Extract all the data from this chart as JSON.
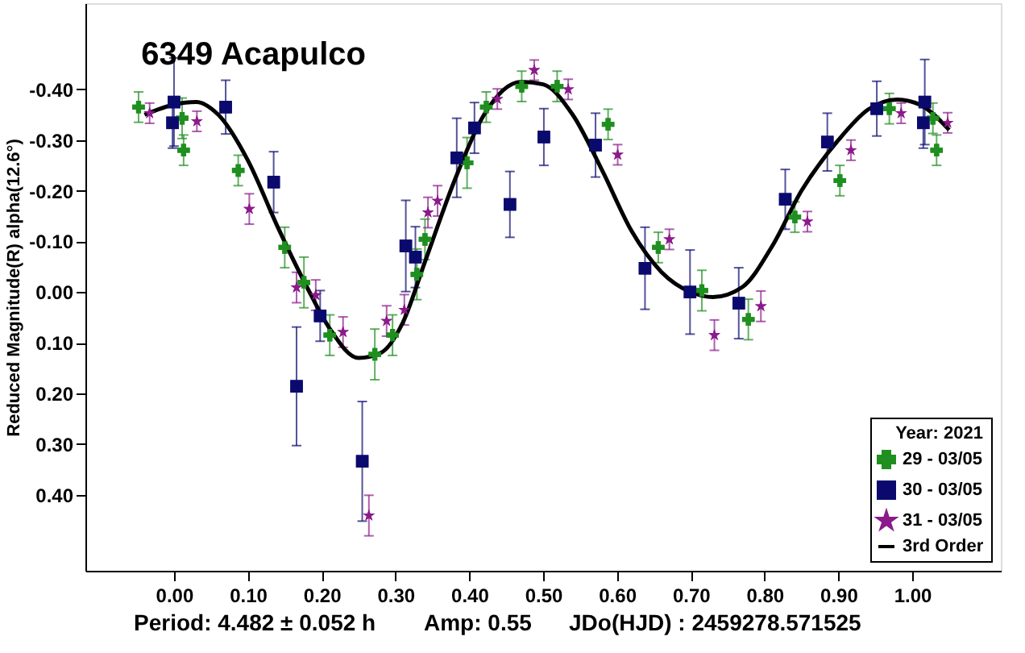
{
  "chart_data": {
    "type": "scatter",
    "title": "6349 Acapulco",
    "ylabel": "Reduced Magnitude(R) alpha(12.6°)",
    "annotations": [
      "Period: 4.482 ± 0.052 h",
      "Amp: 0.55",
      "JDo(HJD) : 2459278.571525"
    ],
    "legend_title": "Year: 2021",
    "legend": "bottom right",
    "grid": false,
    "xlim": [
      -0.12,
      1.12
    ],
    "ylim": [
      0.55,
      -0.57
    ],
    "xticks": [
      {
        "value": 0,
        "label": "0.00"
      },
      {
        "value": 0.1,
        "label": "0.10"
      },
      {
        "value": 0.2,
        "label": "0.20"
      },
      {
        "value": 0.3,
        "label": "0.30"
      },
      {
        "value": 0.4,
        "label": "0.40"
      },
      {
        "value": 0.5,
        "label": "0.50"
      },
      {
        "value": 0.6,
        "label": "0.60"
      },
      {
        "value": 0.7,
        "label": "0.70"
      },
      {
        "value": 0.8,
        "label": "0.80"
      },
      {
        "value": 0.9,
        "label": "0.90"
      },
      {
        "value": 1,
        "label": "1.00"
      }
    ],
    "yticks": [
      {
        "value": -0.4,
        "label": "-0.40"
      },
      {
        "value": -0.3,
        "label": "-0.30"
      },
      {
        "value": -0.2,
        "label": "-0.20"
      },
      {
        "value": -0.1,
        "label": "-0.10"
      },
      {
        "value": 0,
        "label": "0.00"
      },
      {
        "value": 0.1,
        "label": "0.10"
      },
      {
        "value": 0.2,
        "label": "0.20"
      },
      {
        "value": 0.3,
        "label": "0.30"
      },
      {
        "value": 0.4,
        "label": "0.40"
      }
    ],
    "series": [
      {
        "name": "29 - 03/05",
        "color": "#1f8f1f",
        "marker": "cross",
        "x": [
          -0.048,
          0.011,
          0.013,
          0.087,
          0.15,
          0.176,
          0.211,
          0.272,
          0.296,
          0.329,
          0.34,
          0.397,
          0.423,
          0.471,
          0.519,
          0.588,
          0.656,
          0.715,
          0.778,
          0.841,
          0.902,
          0.969,
          1.028,
          1.033
        ],
        "values": [
          -0.365,
          -0.343,
          -0.28,
          -0.24,
          -0.088,
          -0.019,
          0.085,
          0.123,
          0.085,
          -0.035,
          -0.104,
          -0.255,
          -0.365,
          -0.406,
          -0.406,
          -0.331,
          -0.088,
          -0.003,
          0.054,
          -0.148,
          -0.22,
          -0.362,
          -0.343,
          -0.28
        ],
        "errors": [
          0.03,
          0.04,
          0.03,
          0.03,
          0.04,
          0.05,
          0.04,
          0.05,
          0.04,
          0.05,
          0.04,
          0.05,
          0.03,
          0.03,
          0.03,
          0.03,
          0.03,
          0.04,
          0.04,
          0.03,
          0.03,
          0.03,
          0.03,
          0.03
        ]
      },
      {
        "name": "30 - 03/05",
        "color": "#0a0a6e",
        "marker": "square",
        "x": [
          0.0,
          -0.002,
          0.07,
          0.135,
          0.198,
          0.166,
          0.255,
          0.314,
          0.327,
          0.383,
          0.407,
          0.455,
          0.501,
          0.571,
          0.638,
          0.699,
          0.765,
          0.828,
          0.885,
          0.952,
          1.015,
          1.017
        ],
        "values": [
          -0.375,
          -0.334,
          -0.365,
          -0.217,
          0.047,
          0.186,
          0.334,
          -0.091,
          -0.069,
          -0.265,
          -0.324,
          -0.173,
          -0.306,
          -0.29,
          -0.047,
          0.0,
          0.022,
          -0.183,
          -0.296,
          -0.362,
          -0.334,
          -0.375
        ],
        "errors": [
          0.087,
          0.05,
          0.053,
          0.06,
          0.05,
          0.117,
          0.118,
          0.09,
          0.06,
          0.078,
          0.05,
          0.065,
          0.056,
          0.063,
          0.081,
          0.083,
          0.07,
          0.059,
          0.057,
          0.054,
          0.05,
          0.084
        ]
      },
      {
        "name": "31 - 03/05",
        "color": "#8b1a8b",
        "marker": "star",
        "x": [
          -0.033,
          0.031,
          0.102,
          0.166,
          0.192,
          0.229,
          0.264,
          0.288,
          0.312,
          0.344,
          0.357,
          0.438,
          0.488,
          0.534,
          0.601,
          0.671,
          0.732,
          0.795,
          0.858,
          0.917,
          0.985,
          1.048
        ],
        "values": [
          -0.353,
          -0.337,
          -0.164,
          -0.009,
          0.006,
          0.079,
          0.441,
          0.057,
          0.035,
          -0.157,
          -0.18,
          -0.381,
          -0.438,
          -0.4,
          -0.271,
          -0.104,
          0.085,
          0.028,
          -0.139,
          -0.28,
          -0.353,
          -0.334
        ],
        "errors": [
          0.02,
          0.02,
          0.03,
          0.03,
          0.03,
          0.03,
          0.04,
          0.03,
          0.03,
          0.03,
          0.03,
          0.02,
          0.02,
          0.02,
          0.02,
          0.02,
          0.03,
          0.03,
          0.02,
          0.02,
          0.02,
          0.02
        ]
      },
      {
        "name": "3rd Order",
        "type": "line",
        "color": "#000000",
        "marker": "none",
        "line_style": "solid",
        "x": [
          -0.04,
          0.0,
          0.03,
          0.06,
          0.1,
          0.14,
          0.18,
          0.21,
          0.25,
          0.28,
          0.31,
          0.34,
          0.38,
          0.42,
          0.47,
          0.5,
          0.54,
          0.58,
          0.62,
          0.66,
          0.7,
          0.73,
          0.77,
          0.81,
          0.85,
          0.9,
          0.94,
          0.98,
          1.01,
          1.05
        ],
        "values": [
          -0.35,
          -0.37,
          -0.375,
          -0.35,
          -0.26,
          -0.13,
          -0.01,
          0.07,
          0.13,
          0.12,
          0.06,
          -0.06,
          -0.22,
          -0.35,
          -0.415,
          -0.41,
          -0.35,
          -0.24,
          -0.12,
          -0.04,
          0.0,
          0.01,
          -0.01,
          -0.09,
          -0.2,
          -0.3,
          -0.36,
          -0.38,
          -0.37,
          -0.32
        ]
      }
    ]
  }
}
